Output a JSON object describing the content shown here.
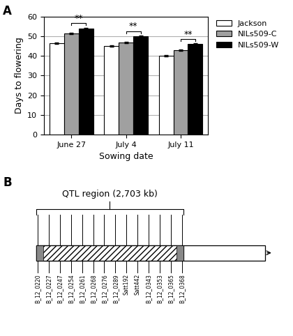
{
  "chart_data": [
    {
      "type": "bar",
      "categories": [
        "June 27",
        "July 4",
        "July 11"
      ],
      "series": [
        {
          "name": "Jackson",
          "color": "#ffffff",
          "values": [
            46.5,
            45.0,
            40.0
          ],
          "errors": [
            0.5,
            0.4,
            0.4
          ]
        },
        {
          "name": "NILs509-C",
          "color": "#a0a0a0",
          "values": [
            51.5,
            47.0,
            43.0
          ],
          "errors": [
            0.5,
            0.4,
            0.4
          ]
        },
        {
          "name": "NILs509-W",
          "color": "#000000",
          "values": [
            54.0,
            50.0,
            46.0
          ],
          "errors": [
            0.5,
            0.4,
            0.4
          ]
        }
      ],
      "significance": [
        "**",
        "**",
        "**"
      ],
      "y_label": "Days to flowering",
      "x_label": "Sowing date",
      "ylim": [
        0,
        60
      ],
      "yticks": [
        0,
        10,
        20,
        30,
        40,
        50,
        60
      ],
      "grid": true,
      "legend": "upper left",
      "annotations": [
        "A"
      ]
    },
    {
      "type": "diagram",
      "title": "QTL region (2,703 kb)",
      "categories": [
        "B_12_0220",
        "B_12_0227",
        "B_12_0247",
        "B_12_0254",
        "B_12_0261",
        "B_12_0268",
        "B_12_0276",
        "B_12_0289",
        "Satt192",
        "Satt442",
        "B_12_0343",
        "B_12_0353",
        "B_12_0365",
        "B_12_0368"
      ],
      "annotations": [
        "B"
      ]
    }
  ]
}
